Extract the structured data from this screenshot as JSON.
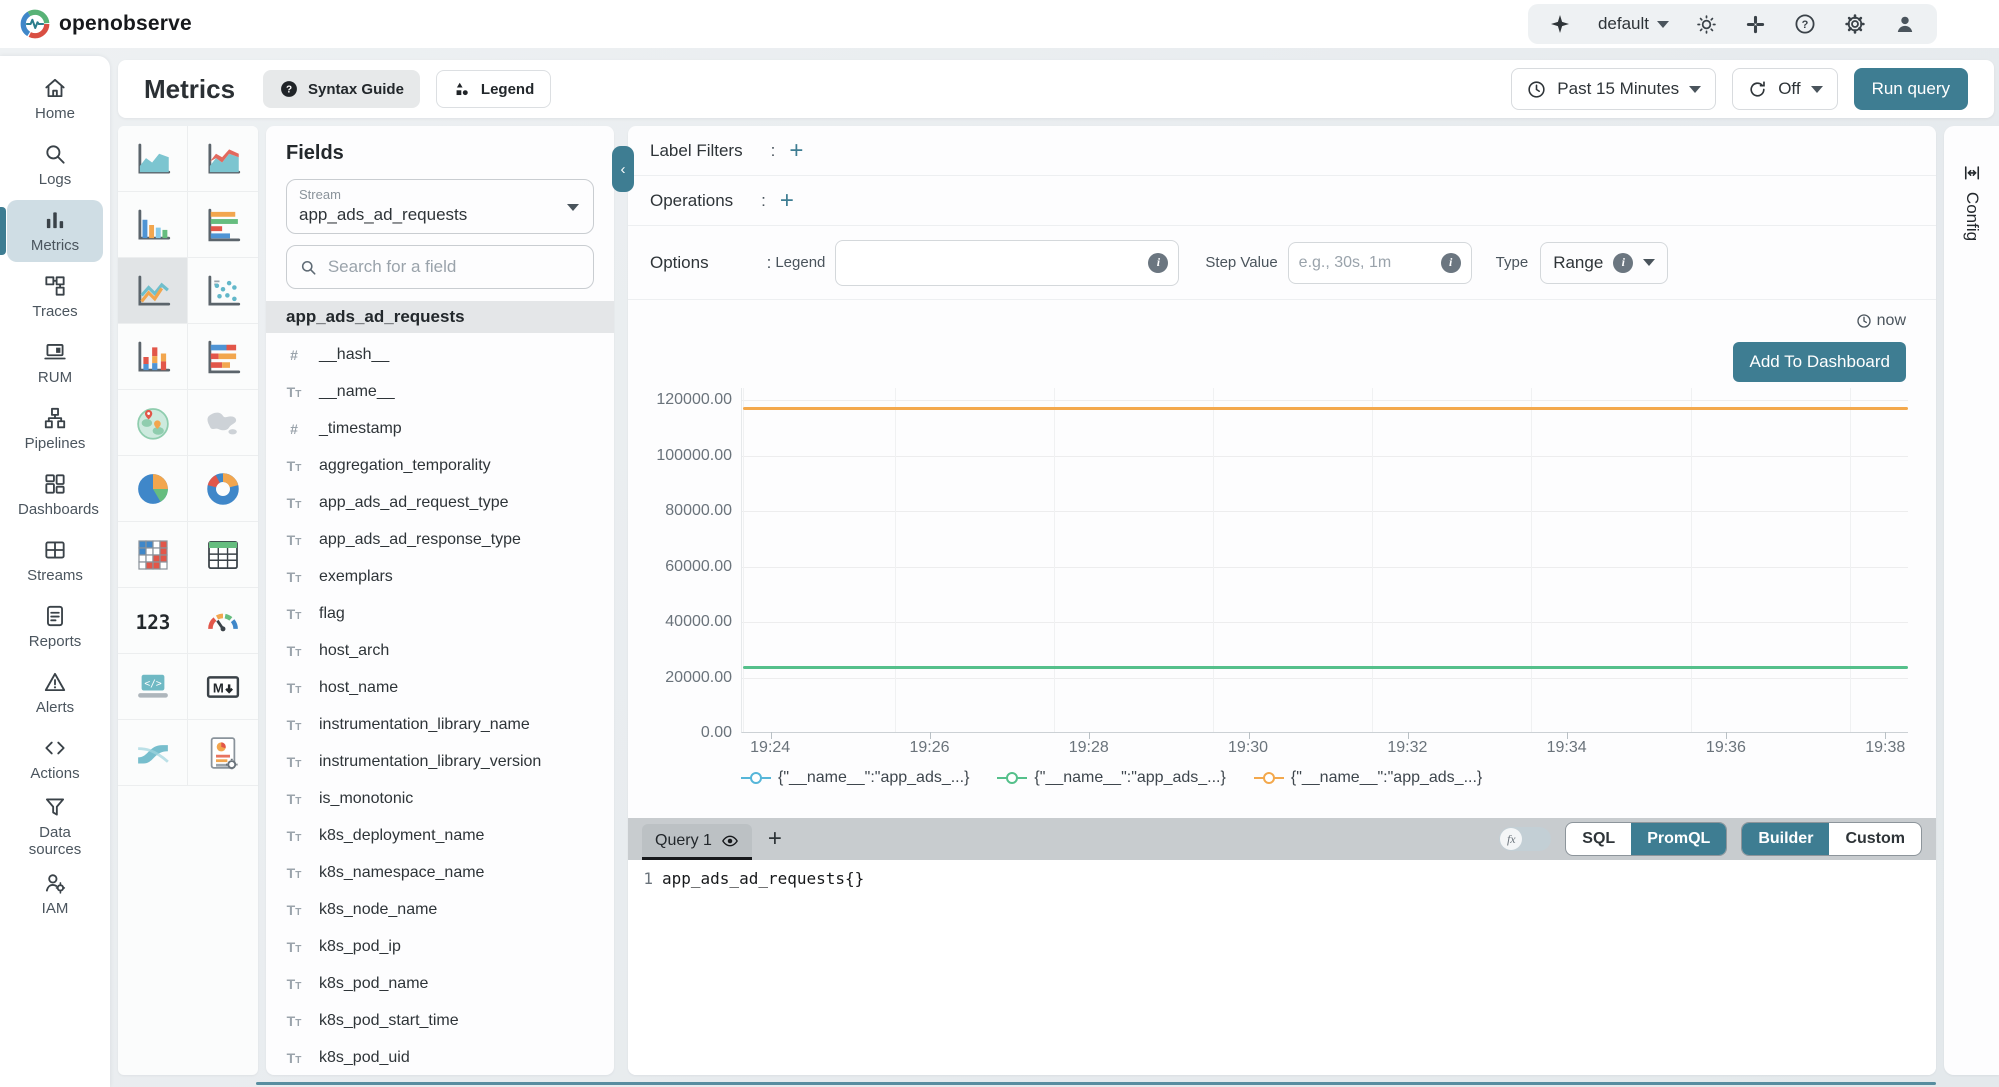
{
  "topbar": {
    "logo_text": "openobserve",
    "org_selector": {
      "value": "default"
    },
    "icons": [
      "ai-sparkle",
      "theme-light",
      "apps",
      "help",
      "settings",
      "profile"
    ]
  },
  "toolbar": {
    "page_title": "Metrics",
    "syntax_guide_label": "Syntax Guide",
    "legend_button_label": "Legend",
    "time_range_value": "Past 15 Minutes",
    "refresh_interval_value": "Off",
    "run_query_label": "Run query"
  },
  "sidebar": {
    "items": [
      {
        "label": "Home",
        "icon": "home",
        "active": false
      },
      {
        "label": "Logs",
        "icon": "search",
        "active": false
      },
      {
        "label": "Metrics",
        "icon": "metrics",
        "active": true
      },
      {
        "label": "Traces",
        "icon": "traces",
        "active": false
      },
      {
        "label": "RUM",
        "icon": "rum",
        "active": false
      },
      {
        "label": "Pipelines",
        "icon": "pipelines",
        "active": false
      },
      {
        "label": "Dashboards",
        "icon": "dashboards",
        "active": false
      },
      {
        "label": "Streams",
        "icon": "streams",
        "active": false
      },
      {
        "label": "Reports",
        "icon": "reports",
        "active": false
      },
      {
        "label": "Alerts",
        "icon": "alerts",
        "active": false
      },
      {
        "label": "Actions",
        "icon": "actions",
        "active": false
      },
      {
        "label": "Data sources",
        "icon": "data-sources",
        "active": false
      },
      {
        "label": "IAM",
        "icon": "iam",
        "active": false
      }
    ]
  },
  "chart_type_picker": {
    "selected": "line",
    "items": [
      "area",
      "area-stacked",
      "bar",
      "horizontal-bar",
      "line",
      "scatter",
      "stacked-bar",
      "horizontal-stacked-bar",
      "geomap",
      "maps",
      "pie",
      "donut",
      "heatmap",
      "table",
      "metric-text",
      "gauge",
      "html",
      "markdown",
      "sankey",
      "custom-chart"
    ]
  },
  "fields_panel": {
    "title": "Fields",
    "stream_label": "Stream",
    "stream_value": "app_ads_ad_requests",
    "search_placeholder": "Search for a field",
    "group_header": "app_ads_ad_requests",
    "fields": [
      {
        "type": "number",
        "name": "__hash__"
      },
      {
        "type": "text",
        "name": "__name__"
      },
      {
        "type": "number",
        "name": "_timestamp"
      },
      {
        "type": "text",
        "name": "aggregation_temporality"
      },
      {
        "type": "text",
        "name": "app_ads_ad_request_type"
      },
      {
        "type": "text",
        "name": "app_ads_ad_response_type"
      },
      {
        "type": "text",
        "name": "exemplars"
      },
      {
        "type": "text",
        "name": "flag"
      },
      {
        "type": "text",
        "name": "host_arch"
      },
      {
        "type": "text",
        "name": "host_name"
      },
      {
        "type": "text",
        "name": "instrumentation_library_name"
      },
      {
        "type": "text",
        "name": "instrumentation_library_version"
      },
      {
        "type": "text",
        "name": "is_monotonic"
      },
      {
        "type": "text",
        "name": "k8s_deployment_name"
      },
      {
        "type": "text",
        "name": "k8s_namespace_name"
      },
      {
        "type": "text",
        "name": "k8s_node_name"
      },
      {
        "type": "text",
        "name": "k8s_pod_ip"
      },
      {
        "type": "text",
        "name": "k8s_pod_name"
      },
      {
        "type": "text",
        "name": "k8s_pod_start_time"
      },
      {
        "type": "text",
        "name": "k8s_pod_uid"
      }
    ]
  },
  "query_builder": {
    "label_filters_label": "Label Filters",
    "operations_label": "Operations",
    "options_label": "Options",
    "legend_field_label": "Legend",
    "step_value_label": "Step Value",
    "step_value_placeholder": "e.g., 30s, 1m",
    "type_label": "Type",
    "type_value": "Range",
    "now_label": "now",
    "add_to_dashboard_label": "Add To Dashboard"
  },
  "chart_data": {
    "type": "line",
    "title": "",
    "x_labels": [
      "19:24",
      "19:26",
      "19:28",
      "19:30",
      "19:32",
      "19:34",
      "19:36",
      "19:38"
    ],
    "y_ticks": [
      0,
      20000,
      40000,
      60000,
      80000,
      100000,
      120000
    ],
    "y_tick_format": "0.00 decimals",
    "ylim": [
      0,
      120000
    ],
    "grid": true,
    "legend_position": "bottom",
    "series": [
      {
        "name": "{\"__name__\":\"app_ads_...}",
        "color": "#56b6d9",
        "value": 23900,
        "visible": false
      },
      {
        "name": "{\"__name__\":\"app_ads_...}",
        "color": "#55c08b",
        "value": 23900,
        "visible": true
      },
      {
        "name": "{\"__name__\":\"app_ads_...}",
        "color": "#f3a84c",
        "value": 117000,
        "visible": true
      }
    ]
  },
  "query_editor": {
    "tab_label": "Query 1",
    "add_tab_label": "+",
    "fx_label": "fx",
    "language_toggle": {
      "options": [
        "SQL",
        "PromQL"
      ],
      "selected": "PromQL"
    },
    "mode_toggle": {
      "options": [
        "Builder",
        "Custom"
      ],
      "selected": "Builder"
    },
    "line_number": "1",
    "query_text": "app_ads_ad_requests{}"
  },
  "config_panel": {
    "label": "Config"
  },
  "colors": {
    "accent": "#3e7d92",
    "line_orange": "#f3a84c",
    "line_green": "#55c08b",
    "line_blue": "#56b6d9"
  }
}
